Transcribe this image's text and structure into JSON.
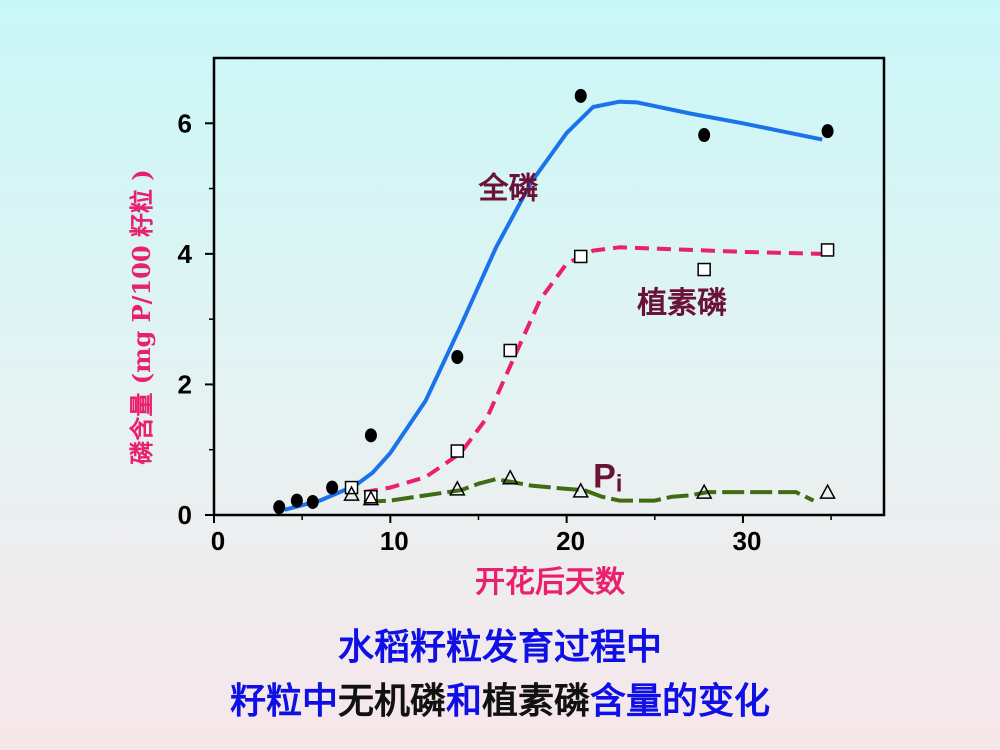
{
  "colors": {
    "total_curve": "#1a73e8",
    "phytin_curve": "#e8206e",
    "pi_curve": "#3f6b12",
    "label_text": "#6b1238",
    "axis_title": "#e8206e",
    "caption_blue": "#0f10e6",
    "caption_black": "#111111"
  },
  "caption": {
    "line1": "水稻籽粒发育过程中",
    "line2_part1": "籽粒中",
    "line2_part2": "无机磷",
    "line2_part3": "和",
    "line2_part4": "植素磷",
    "line2_part5": "含量的变化"
  },
  "chart_data": {
    "type": "line",
    "title": "",
    "xlabel": "开花后天数",
    "ylabel": "磷含量 (mg P/100 籽粒 )",
    "xlim": [
      0,
      38
    ],
    "ylim": [
      0,
      7
    ],
    "xticks": [
      0,
      10,
      20,
      30
    ],
    "yticks": [
      0,
      2,
      4,
      6
    ],
    "series": [
      {
        "name": "全磷",
        "style": "solid",
        "marker": "filled-circle",
        "points": [
          [
            3.7,
            0.12
          ],
          [
            4.7,
            0.22
          ],
          [
            5.6,
            0.2
          ],
          [
            6.7,
            0.42
          ],
          [
            8.9,
            1.22
          ],
          [
            13.8,
            2.42
          ],
          [
            20.8,
            6.42
          ],
          [
            27.8,
            5.82
          ],
          [
            34.8,
            5.88
          ]
        ],
        "curve": [
          [
            4,
            0.08
          ],
          [
            6,
            0.22
          ],
          [
            8,
            0.45
          ],
          [
            9,
            0.65
          ],
          [
            10,
            0.95
          ],
          [
            12,
            1.75
          ],
          [
            14,
            2.9
          ],
          [
            16,
            4.1
          ],
          [
            18,
            5.1
          ],
          [
            20,
            5.85
          ],
          [
            21.5,
            6.25
          ],
          [
            23,
            6.33
          ],
          [
            24,
            6.32
          ],
          [
            27,
            6.15
          ],
          [
            30,
            6.0
          ],
          [
            34.5,
            5.75
          ]
        ]
      },
      {
        "name": "植素磷",
        "style": "dashed",
        "marker": "open-square",
        "points": [
          [
            7.8,
            0.42
          ],
          [
            8.9,
            0.28
          ],
          [
            13.8,
            0.98
          ],
          [
            16.8,
            2.52
          ],
          [
            20.8,
            3.96
          ],
          [
            27.8,
            3.76
          ],
          [
            34.8,
            4.06
          ]
        ],
        "curve": [
          [
            8.5,
            0.35
          ],
          [
            10,
            0.42
          ],
          [
            12,
            0.58
          ],
          [
            14,
            0.95
          ],
          [
            15.5,
            1.5
          ],
          [
            17,
            2.4
          ],
          [
            18.5,
            3.3
          ],
          [
            20,
            3.85
          ],
          [
            21.5,
            4.05
          ],
          [
            23,
            4.1
          ],
          [
            27,
            4.06
          ],
          [
            30,
            4.03
          ],
          [
            34.5,
            4.0
          ]
        ]
      },
      {
        "name": "Pi",
        "style": "dashed",
        "marker": "open-triangle",
        "points": [
          [
            7.8,
            0.32
          ],
          [
            8.9,
            0.25
          ],
          [
            13.8,
            0.4
          ],
          [
            16.8,
            0.57
          ],
          [
            20.8,
            0.37
          ],
          [
            27.8,
            0.35
          ],
          [
            34.8,
            0.35
          ]
        ],
        "curve": [
          [
            8.5,
            0.2
          ],
          [
            10,
            0.22
          ],
          [
            12,
            0.3
          ],
          [
            14,
            0.38
          ],
          [
            15,
            0.48
          ],
          [
            16,
            0.55
          ],
          [
            17,
            0.5
          ],
          [
            18,
            0.45
          ],
          [
            20,
            0.4
          ],
          [
            21,
            0.38
          ],
          [
            22,
            0.28
          ],
          [
            23,
            0.22
          ],
          [
            25,
            0.22
          ],
          [
            26,
            0.28
          ],
          [
            27,
            0.3
          ],
          [
            28,
            0.35
          ],
          [
            30,
            0.35
          ],
          [
            33,
            0.35
          ],
          [
            34,
            0.22
          ]
        ]
      }
    ],
    "annotations": [
      {
        "text": "全磷",
        "x": 15,
        "y": 5.0
      },
      {
        "text": "植素磷",
        "x": 24,
        "y": 3.25
      },
      {
        "text": "Pi",
        "x": 21.5,
        "y": 0.7
      }
    ]
  }
}
